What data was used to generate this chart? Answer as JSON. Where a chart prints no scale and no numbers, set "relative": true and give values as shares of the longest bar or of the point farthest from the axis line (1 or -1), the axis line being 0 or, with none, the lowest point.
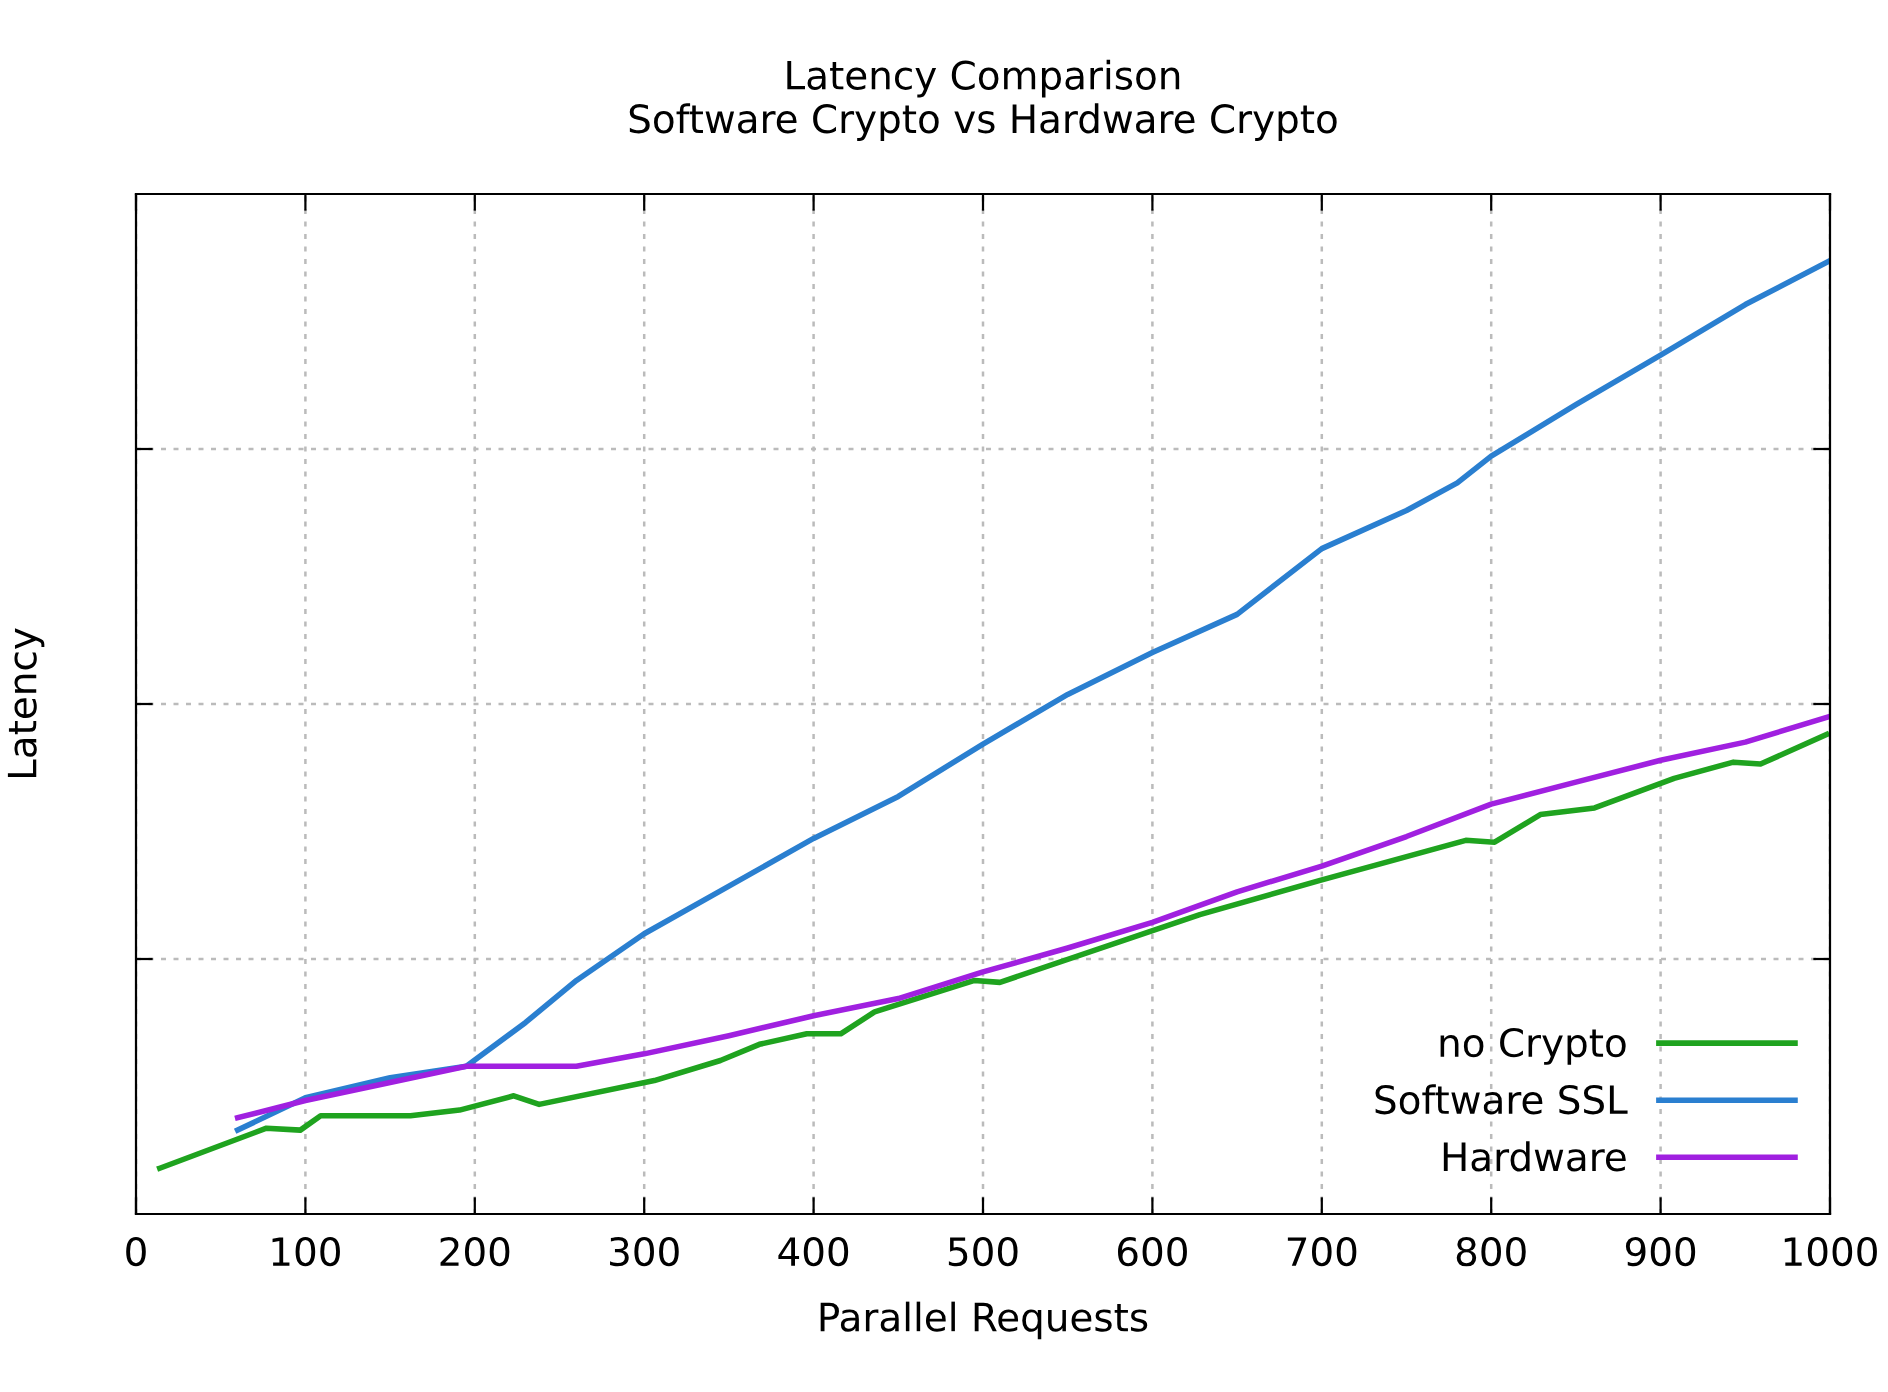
{
  "chart_data": {
    "type": "line",
    "title": "Latency Comparison\nSoftware Crypto vs Hardware Crypto",
    "xlabel": "Parallel Requests",
    "ylabel": "Latency",
    "relative": true,
    "xlim": [
      0,
      1000
    ],
    "xticks": [
      0,
      100,
      200,
      300,
      400,
      500,
      600,
      700,
      800,
      900,
      1000
    ],
    "grid": true,
    "legend": "bottom right",
    "line_style": "solid",
    "marker": "none",
    "series": [
      {
        "name": "no Crypto",
        "color": "#1fa31f",
        "x": [
          14,
          77,
          97,
          109,
          162,
          191,
          223,
          238,
          306,
          345,
          368,
          396,
          416,
          436,
          495,
          510,
          628,
          699,
          785,
          802,
          829,
          861,
          908,
          943,
          959,
          998
        ],
        "values": [
          0.048,
          0.09,
          0.088,
          0.103,
          0.103,
          0.109,
          0.124,
          0.115,
          0.14,
          0.161,
          0.178,
          0.189,
          0.189,
          0.212,
          0.245,
          0.243,
          0.314,
          0.35,
          0.392,
          0.39,
          0.419,
          0.426,
          0.457,
          0.474,
          0.472,
          0.503
        ]
      },
      {
        "name": "Software SSL",
        "color": "#2a7fd0",
        "x": [
          60,
          100,
          150,
          195,
          230,
          260,
          300,
          350,
          400,
          450,
          500,
          550,
          600,
          650,
          700,
          750,
          780,
          800,
          850,
          900,
          950,
          1000
        ],
        "values": [
          0.088,
          0.122,
          0.143,
          0.155,
          0.201,
          0.245,
          0.294,
          0.344,
          0.394,
          0.438,
          0.493,
          0.545,
          0.589,
          0.629,
          0.698,
          0.738,
          0.767,
          0.795,
          0.849,
          0.901,
          0.954,
          1.0
        ]
      },
      {
        "name": "Hardware",
        "color": "#a020e0",
        "x": [
          60,
          100,
          150,
          195,
          260,
          300,
          350,
          400,
          450,
          500,
          550,
          600,
          650,
          700,
          750,
          800,
          850,
          900,
          950,
          1000
        ],
        "values": [
          0.101,
          0.119,
          0.138,
          0.155,
          0.155,
          0.168,
          0.187,
          0.208,
          0.226,
          0.254,
          0.279,
          0.306,
          0.338,
          0.365,
          0.396,
          0.43,
          0.453,
          0.476,
          0.495,
          0.522
        ]
      }
    ]
  }
}
